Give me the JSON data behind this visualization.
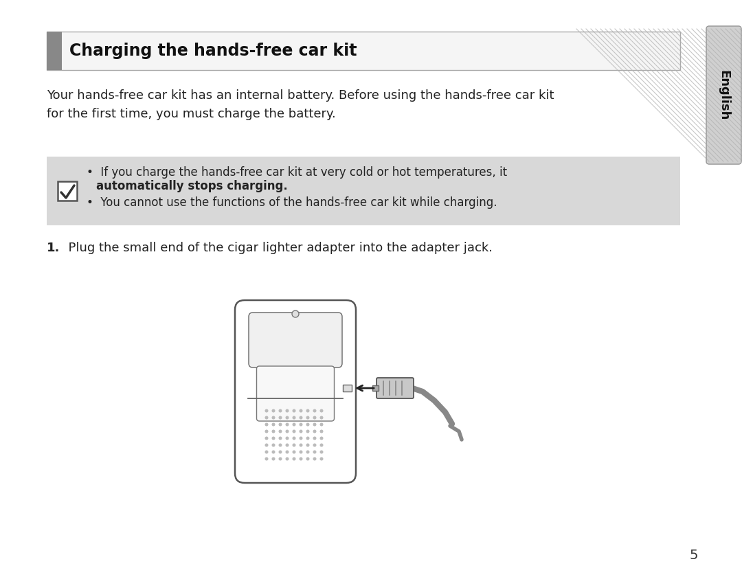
{
  "title": "Charging the hands-free car kit",
  "title_sidebar_color": "#888888",
  "body_text": "Your hands-free car kit has an internal battery. Before using the hands-free car kit\nfor the first time, you must charge the battery.",
  "note_bg": "#d8d8d8",
  "note_bullet1_line1": "If you charge the hands-free car kit at very cold or hot temperatures, it",
  "note_bullet1_line2": "automatically stops charging.",
  "note_bullet2": "You cannot use the functions of the hands-free car kit while charging.",
  "step1_prefix": "1.",
  "step1_text": "  Plug the small end of the cigar lighter adapter into the adapter jack.",
  "sidebar_text": "English",
  "page_number": "5",
  "bg_color": "#ffffff",
  "text_color": "#222222",
  "title_fontsize": 17,
  "body_fontsize": 13,
  "note_fontsize": 12,
  "step_fontsize": 13
}
